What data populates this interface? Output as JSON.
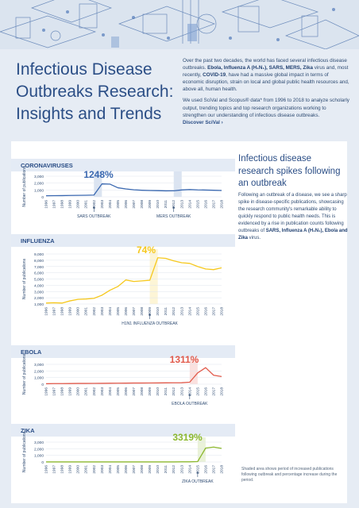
{
  "header": {
    "title_line1": "Infectious Disease",
    "title_line2": "Outbreaks Research:",
    "title_line3": "Insights and Trends"
  },
  "intro": {
    "p1_a": "Over the past two decades, the world has faced several infectious disease outbreaks. ",
    "p1_b": "Ebola, Influenza A (H₁N₁), SARS, MERS, Zika",
    "p1_c": " virus and, most recently, ",
    "p1_d": "COVID-19",
    "p1_e": ", have had a massive global impact in terms of economic disruption, strain on local and global public health resources and, above all, human health.",
    "p2": "We used SciVal and Scopus® data* from 1996 to 2018 to analyze scholarly output, trending topics and top research organizations working to strengthen our understanding of infectious disease outbreaks.",
    "link": "Discover SciVal",
    "link_arrow": "›"
  },
  "sidebar": {
    "title": "Infectious disease research spikes following an outbreak",
    "text_a": "Following an outbreak of a disease, we see a sharp spike in disease-specific publications, showcasing the research community's remarkable ability to quickly respond to public health needs. This is evidenced by a rise in publication counts following outbreaks of ",
    "text_b": "SARS, Influenza A (H₁N₁), Ebola and Zika",
    "text_c": " virus.",
    "footnote": "Shaded area shows period of increased publications following outbreak and percentage increase during the period."
  },
  "colors": {
    "blue_line": "#3a68b0",
    "yellow_line": "#f6c81d",
    "red_line": "#e15a4b",
    "green_line": "#8cb82f",
    "blue_text": "#2b4e86",
    "background": "#e6ecf4"
  },
  "icons": [
    "hero-illustration",
    "chevron-right-icon",
    "arrow-up-icon"
  ],
  "chart_data": [
    {
      "type": "line",
      "title": "CORONAVIRUSES",
      "ylabel": "Number of publications",
      "ylim": [
        0,
        3000
      ],
      "yticks": [
        "0",
        "1,000",
        "2,000",
        "3,000"
      ],
      "x": [
        "1996",
        "1997",
        "1998",
        "1999",
        "2000",
        "2001",
        "2002",
        "2003",
        "2004",
        "2005",
        "2006",
        "2007",
        "2008",
        "2009",
        "2010",
        "2011",
        "2012",
        "2013",
        "2014",
        "2015",
        "2016",
        "2017",
        "2018"
      ],
      "values": [
        160,
        170,
        180,
        200,
        220,
        230,
        260,
        1880,
        1850,
        1320,
        1150,
        1020,
        960,
        920,
        900,
        870,
        880,
        1000,
        1060,
        1010,
        990,
        960,
        920
      ],
      "shaded": [
        [
          2002,
          2003
        ],
        [
          2012,
          2013
        ]
      ],
      "increase_label": "1248%",
      "annotations": [
        "SARS OUTBREAK",
        "MERS OUTBREAK"
      ],
      "annotation_x": [
        2002,
        2012
      ],
      "color": "#3a68b0"
    },
    {
      "type": "line",
      "title": "INFLUENZA",
      "ylabel": "Number of publications",
      "ylim": [
        1000,
        9000
      ],
      "yticks": [
        "1,000",
        "2,000",
        "3,000",
        "4,000",
        "5,000",
        "6,000",
        "7,000",
        "8,000",
        "9,000"
      ],
      "x": [
        "1996",
        "1997",
        "1998",
        "1999",
        "2000",
        "2001",
        "2002",
        "2003",
        "2004",
        "2005",
        "2006",
        "2007",
        "2008",
        "2009",
        "2010",
        "2011",
        "2012",
        "2013",
        "2014",
        "2015",
        "2016",
        "2017",
        "2018"
      ],
      "values": [
        1150,
        1200,
        1150,
        1500,
        1750,
        1800,
        1900,
        2400,
        3200,
        3800,
        4850,
        4600,
        4700,
        4800,
        8400,
        8300,
        7900,
        7600,
        7500,
        7000,
        6600,
        6500,
        6800
      ],
      "shaded": [
        [
          2009,
          2010
        ]
      ],
      "increase_label": "74%",
      "annotations": [
        "H1N1 INFLUENZA OUTBREAK"
      ],
      "annotation_x": [
        2009
      ],
      "color": "#f6c81d"
    },
    {
      "type": "line",
      "title": "EBOLA",
      "ylabel": "Number of publications",
      "ylim": [
        0,
        3000
      ],
      "yticks": [
        "0",
        "1,000",
        "2,000",
        "3,000"
      ],
      "x": [
        "1996",
        "1997",
        "1998",
        "1999",
        "2000",
        "2001",
        "2002",
        "2003",
        "2004",
        "2005",
        "2006",
        "2007",
        "2008",
        "2009",
        "2010",
        "2011",
        "2012",
        "2013",
        "2014",
        "2015",
        "2016",
        "2017",
        "2018"
      ],
      "values": [
        70,
        90,
        90,
        100,
        110,
        110,
        120,
        130,
        140,
        150,
        160,
        170,
        170,
        180,
        190,
        200,
        210,
        220,
        300,
        1700,
        2500,
        1350,
        1150
      ],
      "shaded": [
        [
          2014,
          2015
        ]
      ],
      "increase_label": "1311%",
      "annotations": [
        "EBOLA OUTBREAK"
      ],
      "annotation_x": [
        2014
      ],
      "color": "#e15a4b"
    },
    {
      "type": "line",
      "title": "ZIKA",
      "ylabel": "Number of publications",
      "ylim": [
        0,
        3000
      ],
      "yticks": [
        "0",
        "1,000",
        "2,000",
        "3,000"
      ],
      "x": [
        "1996",
        "1997",
        "1998",
        "1999",
        "2000",
        "2001",
        "2002",
        "2003",
        "2004",
        "2005",
        "2006",
        "2007",
        "2008",
        "2009",
        "2010",
        "2011",
        "2012",
        "2013",
        "2014",
        "2015",
        "2016",
        "2017",
        "2018"
      ],
      "values": [
        5,
        5,
        5,
        5,
        5,
        5,
        5,
        5,
        5,
        5,
        5,
        10,
        10,
        10,
        10,
        10,
        10,
        20,
        20,
        60,
        2100,
        2250,
        2050
      ],
      "shaded": [
        [
          2015,
          2016
        ]
      ],
      "increase_label": "3319%",
      "annotations": [
        "ZIKA OUTBREAK"
      ],
      "annotation_x": [
        2015
      ],
      "color": "#8cb82f"
    }
  ]
}
